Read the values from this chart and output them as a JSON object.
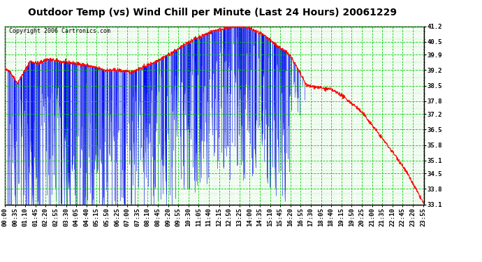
{
  "title": "Outdoor Temp (vs) Wind Chill per Minute (Last 24 Hours) 20061229",
  "copyright": "Copyright 2006 Cartronics.com",
  "yticks": [
    33.1,
    33.8,
    34.5,
    35.1,
    35.8,
    36.5,
    37.2,
    37.8,
    38.5,
    39.2,
    39.9,
    40.5,
    41.2
  ],
  "ymin": 33.1,
  "ymax": 41.2,
  "bg_color": "#ffffff",
  "plot_bg_color": "#ffffff",
  "grid_color": "#00cc00",
  "temp_color": "#ff0000",
  "wind_color": "#0000ff",
  "title_fontsize": 10,
  "copyright_fontsize": 6,
  "tick_fontsize": 6.5,
  "num_minutes": 1440,
  "xtick_interval": 35
}
